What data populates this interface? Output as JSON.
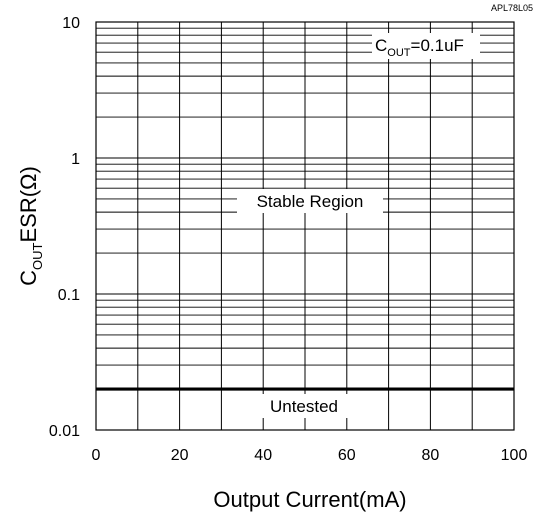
{
  "chart_data": {
    "type": "line",
    "part_number": "APL78L05",
    "xlabel": "Output Current(mA)",
    "ylabel": {
      "main": "C",
      "sub": "OUT",
      "rest": "ESR(Ω)"
    },
    "x_range": [
      0,
      100
    ],
    "x_ticks": [
      0,
      20,
      40,
      60,
      80,
      100
    ],
    "x_tick_labels": [
      "0",
      "20",
      "40",
      "60",
      "80",
      "100"
    ],
    "x_minor_step": 10,
    "y_scale": "log",
    "y_range": [
      0.01,
      10
    ],
    "y_ticks": [
      0.01,
      0.1,
      1,
      10
    ],
    "y_tick_labels": [
      "0.01",
      "0.1",
      "1",
      "10"
    ],
    "grid": true,
    "boundary": {
      "y": 0.02,
      "x_start": 0,
      "x_end": 100
    },
    "annotations": {
      "condition": {
        "main": "C",
        "sub": "OUT",
        "rest": "=0.1uF"
      },
      "stable_region": "Stable Region",
      "untested": "Untested"
    }
  }
}
